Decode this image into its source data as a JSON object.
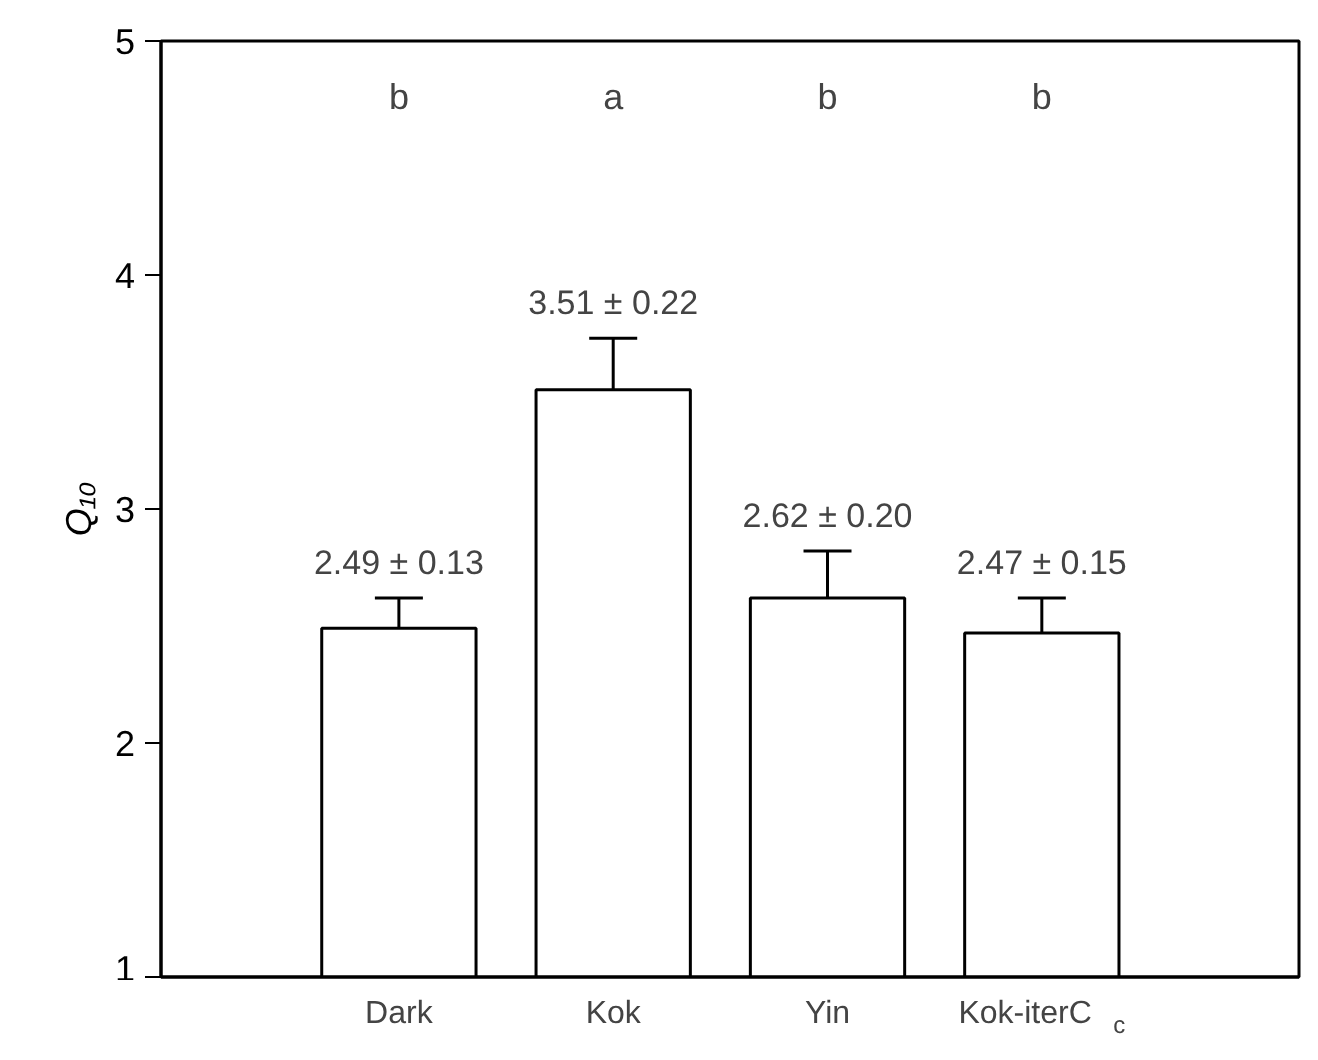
{
  "chart_data": {
    "type": "bar",
    "ylabel": "Q₁₀",
    "categories": [
      "Dark",
      "Kok",
      "Yin",
      "Kok-iterC$_{c}$"
    ],
    "values": [
      2.49,
      3.51,
      2.62,
      2.47
    ],
    "errors": [
      0.13,
      0.22,
      0.2,
      0.15
    ],
    "value_labels": [
      "2.49 ± 0.13",
      "3.51 ± 0.22",
      "2.62 ± 0.20",
      "2.47 ± 0.15"
    ],
    "color": "#ffffff",
    "ylim": [
      1,
      5
    ],
    "yticks": [
      1,
      2,
      3,
      4,
      5
    ],
    "grid": false,
    "annotations": [
      "b",
      "a",
      "b",
      "b"
    ]
  }
}
